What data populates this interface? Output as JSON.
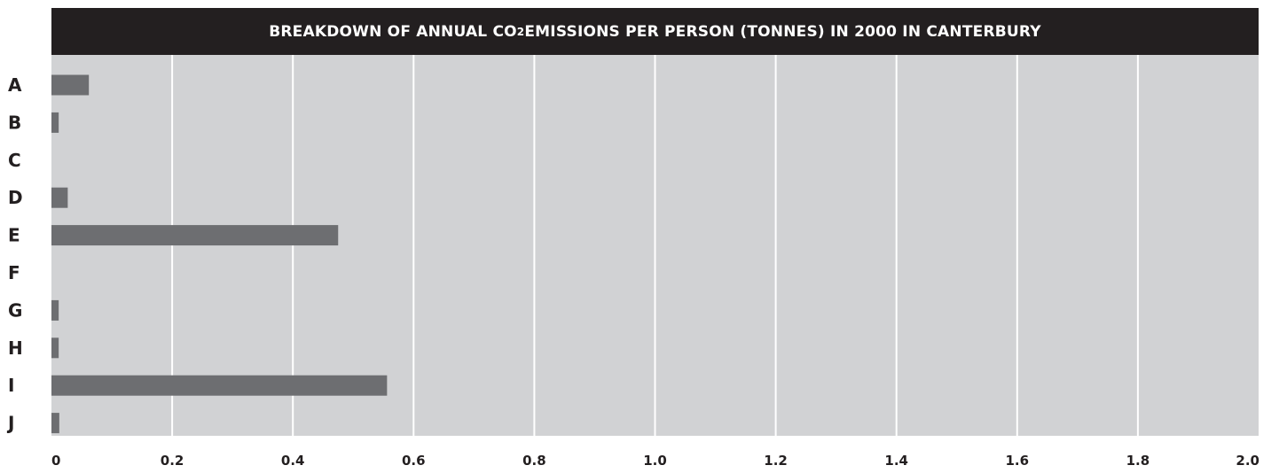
{
  "chart_data": {
    "type": "bar",
    "orientation": "horizontal",
    "title": {
      "before": "BREAKDOWN OF ANNUAL CO",
      "subscript": "2",
      "after": " EMISSIONS PER PERSON (TONNES) IN 2000 IN CANTERBURY"
    },
    "categories": [
      "A",
      "B",
      "C",
      "D",
      "E",
      "F",
      "G",
      "H",
      "I",
      "J"
    ],
    "values": [
      0.062,
      0.012,
      0,
      0.027,
      0.475,
      0,
      0.012,
      0.012,
      0.556,
      0.013
    ],
    "xlim": [
      0,
      2.0
    ],
    "xticks": [
      "0",
      "0.2",
      "0.4",
      "0.6",
      "0.8",
      "1.0",
      "1.2",
      "1.4",
      "1.6",
      "1.8",
      "2.0"
    ],
    "xlabel": "",
    "ylabel": "",
    "grid": "vertical",
    "legend": "none"
  },
  "colors": {
    "title_background": "#231f20",
    "title_text": "#ffffff",
    "plot_background": "#d1d2d4",
    "gridline": "#ffffff",
    "bar": "#6d6e71",
    "label_text": "#231f20"
  }
}
